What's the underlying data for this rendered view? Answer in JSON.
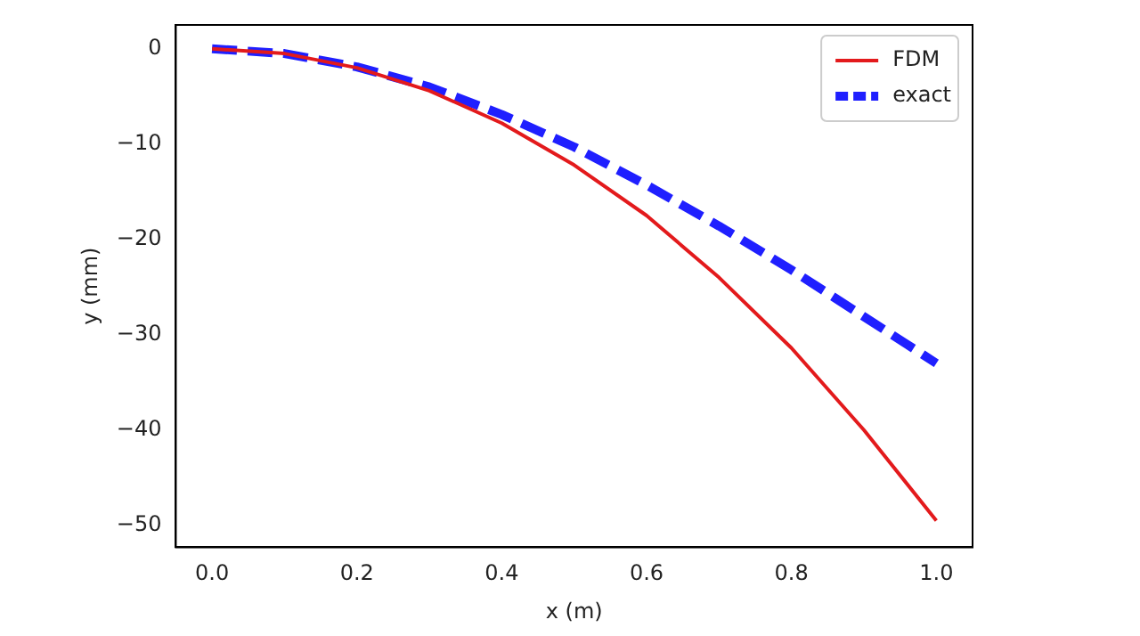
{
  "chart_data": {
    "type": "line",
    "xlabel": "x (m)",
    "ylabel": "y (mm)",
    "xlim": [
      -0.05,
      1.05
    ],
    "xticks": [
      {
        "value": 0,
        "label": "0.0"
      },
      {
        "value": 0.2,
        "label": "0.2"
      },
      {
        "value": 0.4,
        "label": "0.4"
      },
      {
        "value": 0.6,
        "label": "0.6"
      },
      {
        "value": 0.8,
        "label": "0.8"
      },
      {
        "value": 1,
        "label": "1.0"
      }
    ],
    "ylim": [
      -52.3,
      2.5
    ],
    "yticks": [
      0,
      -10,
      -20,
      -30,
      -40,
      -50
    ],
    "grid": false,
    "legend": "top right",
    "marker": "none",
    "series": [
      {
        "name": "FDM",
        "color": "#e31a1c",
        "line_style": "solid",
        "x": [
          0,
          0.1,
          0.2,
          0.3,
          0.4,
          0.5,
          0.6,
          0.7,
          0.8,
          0.9,
          1.0
        ],
        "values": [
          0,
          -0.5,
          -2.0,
          -4.4,
          -7.8,
          -12.2,
          -17.5,
          -24.0,
          -31.4,
          -40.0,
          -49.5
        ]
      },
      {
        "name": "exact",
        "color": "#1f1fff",
        "line_style": "dashed",
        "x": [
          0,
          0.1,
          0.2,
          0.3,
          0.4,
          0.5,
          0.6,
          0.7,
          0.8,
          0.9,
          1.0
        ],
        "values": [
          0,
          -0.5,
          -1.9,
          -4.0,
          -6.9,
          -10.3,
          -14.3,
          -18.6,
          -23.2,
          -28.1,
          -33.0
        ]
      }
    ]
  }
}
